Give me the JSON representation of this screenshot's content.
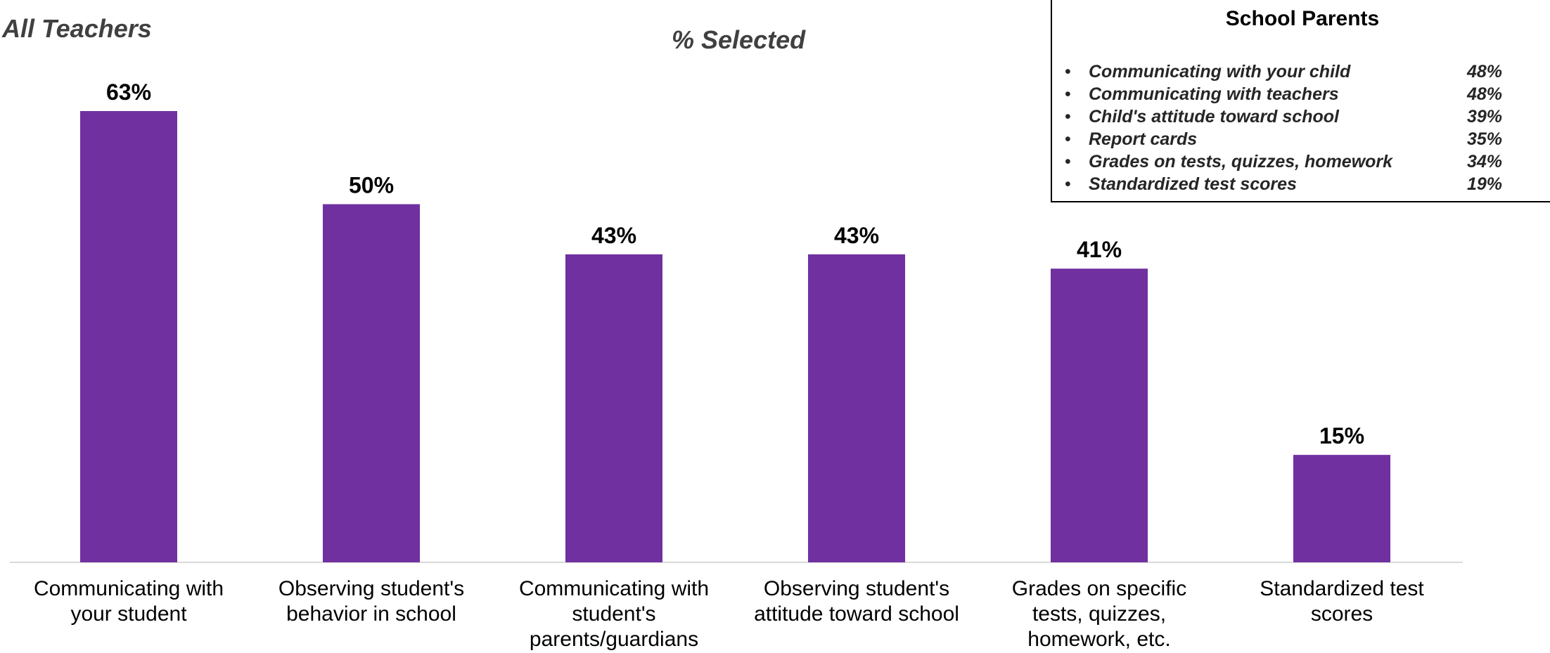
{
  "header": {
    "title": "All Teachers",
    "subtitle": "% Selected"
  },
  "chart_data": {
    "type": "bar",
    "categories": [
      "Communicating with your student",
      "Observing student's behavior in school",
      "Communicating with student's parents/guardians",
      "Observing student's attitude toward school",
      "Grades on specific tests, quizzes, homework, etc.",
      "Standardized test scores"
    ],
    "category_label_lines": [
      [
        "Communicating with",
        "your student"
      ],
      [
        "Observing student's",
        "behavior in school"
      ],
      [
        "Communicating with",
        "student's",
        "parents/guardians"
      ],
      [
        "Observing student's",
        "attitude toward school"
      ],
      [
        "Grades on specific",
        "tests, quizzes,",
        "homework, etc."
      ],
      [
        "Standardized test",
        "scores"
      ]
    ],
    "values": [
      63,
      50,
      43,
      43,
      41,
      15
    ],
    "data_labels": [
      "63%",
      "50%",
      "43%",
      "43%",
      "41%",
      "15%"
    ],
    "ylim": [
      0,
      63
    ],
    "grid": false,
    "bar_color": "#7030A0"
  },
  "parents_box": {
    "title": "School Parents",
    "items": [
      {
        "label": "Communicating with your child",
        "value": "48%"
      },
      {
        "label": "Communicating with teachers",
        "value": "48%"
      },
      {
        "label": "Child's attitude toward school",
        "value": "39%"
      },
      {
        "label": "Report cards",
        "value": "35%"
      },
      {
        "label": "Grades on tests, quizzes, homework",
        "value": "34%"
      },
      {
        "label": "Standardized test scores",
        "value": "19%"
      }
    ],
    "bullet": "•"
  }
}
